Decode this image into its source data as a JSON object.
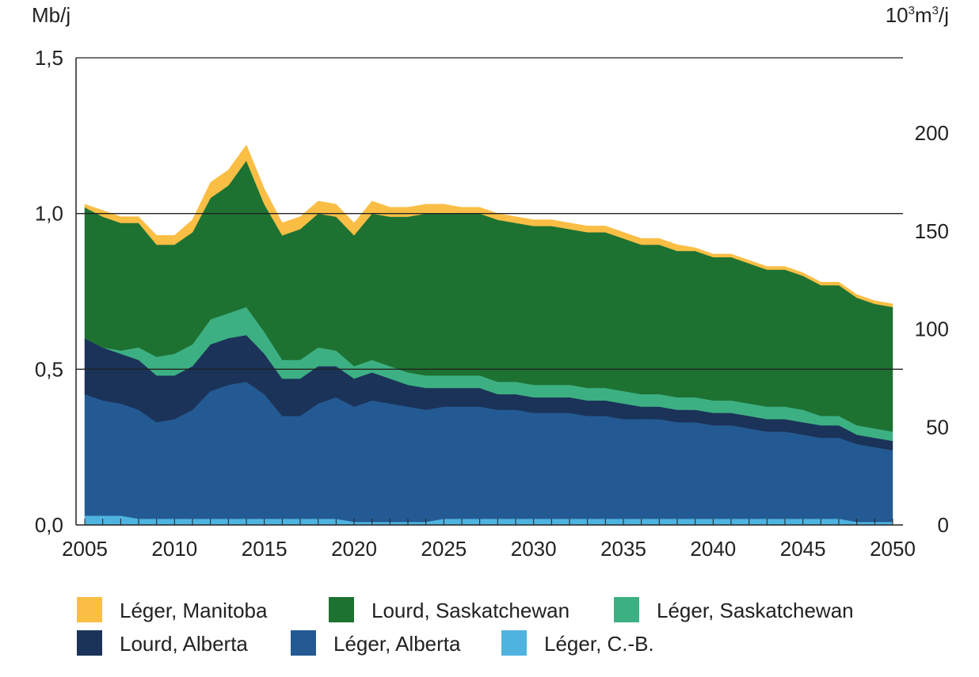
{
  "chart_data": {
    "type": "area",
    "stacked": true,
    "ylabel_left": "Mb/j",
    "ylabel_right_base": "10",
    "ylabel_right_exp1": "3",
    "ylabel_right_mid": "m",
    "ylabel_right_exp2": "3",
    "ylabel_right_end": "/j",
    "ylim": [
      0,
      1.5
    ],
    "yticks": [
      "0,0",
      "0,5",
      "1,0",
      "1,5"
    ],
    "ytick_values": [
      0,
      0.5,
      1.0,
      1.5
    ],
    "right_ticks": [
      "0",
      "50",
      "100",
      "150",
      "200"
    ],
    "right_tick_values": [
      0,
      50,
      100,
      150,
      200
    ],
    "right_axis_factor": 159,
    "xlim": [
      2005,
      2050
    ],
    "xticks": [
      "2005",
      "2010",
      "2015",
      "2020",
      "2025",
      "2030",
      "2035",
      "2040",
      "2045",
      "2050"
    ],
    "grid": "horizontal at 0.5, 1.0, 1.5",
    "legend_position": "bottom",
    "x": [
      2005,
      2006,
      2007,
      2008,
      2009,
      2010,
      2011,
      2012,
      2013,
      2014,
      2015,
      2016,
      2017,
      2018,
      2019,
      2020,
      2021,
      2022,
      2023,
      2024,
      2025,
      2026,
      2027,
      2028,
      2029,
      2030,
      2031,
      2032,
      2033,
      2034,
      2035,
      2036,
      2037,
      2038,
      2039,
      2040,
      2041,
      2042,
      2043,
      2044,
      2045,
      2046,
      2047,
      2048,
      2049,
      2050
    ],
    "series": [
      {
        "name": "Léger, C.-B.",
        "color": "#4FB3E0",
        "values": [
          0.03,
          0.03,
          0.03,
          0.02,
          0.02,
          0.02,
          0.02,
          0.02,
          0.02,
          0.02,
          0.02,
          0.02,
          0.02,
          0.02,
          0.02,
          0.01,
          0.01,
          0.01,
          0.01,
          0.01,
          0.02,
          0.02,
          0.02,
          0.02,
          0.02,
          0.02,
          0.02,
          0.02,
          0.02,
          0.02,
          0.02,
          0.02,
          0.02,
          0.02,
          0.02,
          0.02,
          0.02,
          0.02,
          0.02,
          0.02,
          0.02,
          0.02,
          0.02,
          0.01,
          0.01,
          0.01
        ]
      },
      {
        "name": "Léger, Alberta",
        "color": "#245A93",
        "values": [
          0.39,
          0.37,
          0.36,
          0.35,
          0.31,
          0.32,
          0.35,
          0.41,
          0.43,
          0.44,
          0.4,
          0.33,
          0.33,
          0.37,
          0.39,
          0.37,
          0.39,
          0.38,
          0.37,
          0.36,
          0.36,
          0.36,
          0.36,
          0.35,
          0.35,
          0.34,
          0.34,
          0.34,
          0.33,
          0.33,
          0.32,
          0.32,
          0.32,
          0.31,
          0.31,
          0.3,
          0.3,
          0.29,
          0.28,
          0.28,
          0.27,
          0.26,
          0.26,
          0.25,
          0.24,
          0.23
        ]
      },
      {
        "name": "Lourd, Alberta",
        "color": "#1B3358",
        "values": [
          0.18,
          0.17,
          0.16,
          0.16,
          0.15,
          0.14,
          0.14,
          0.15,
          0.15,
          0.15,
          0.13,
          0.12,
          0.12,
          0.12,
          0.1,
          0.09,
          0.09,
          0.08,
          0.07,
          0.07,
          0.06,
          0.06,
          0.06,
          0.05,
          0.05,
          0.05,
          0.05,
          0.05,
          0.05,
          0.05,
          0.05,
          0.04,
          0.04,
          0.04,
          0.04,
          0.04,
          0.04,
          0.04,
          0.04,
          0.04,
          0.04,
          0.04,
          0.04,
          0.03,
          0.03,
          0.03
        ]
      },
      {
        "name": "Léger, Saskatchewan",
        "color": "#3DB083",
        "values": [
          0.0,
          0.0,
          0.01,
          0.04,
          0.06,
          0.07,
          0.07,
          0.08,
          0.08,
          0.09,
          0.07,
          0.06,
          0.06,
          0.06,
          0.05,
          0.04,
          0.04,
          0.04,
          0.04,
          0.04,
          0.04,
          0.04,
          0.04,
          0.04,
          0.04,
          0.04,
          0.04,
          0.04,
          0.04,
          0.04,
          0.04,
          0.04,
          0.04,
          0.04,
          0.04,
          0.04,
          0.04,
          0.04,
          0.04,
          0.04,
          0.04,
          0.03,
          0.03,
          0.03,
          0.03,
          0.03
        ]
      },
      {
        "name": "Lourd, Saskatchewan",
        "color": "#1D7232",
        "values": [
          0.42,
          0.42,
          0.41,
          0.4,
          0.36,
          0.35,
          0.36,
          0.39,
          0.41,
          0.47,
          0.41,
          0.4,
          0.42,
          0.43,
          0.43,
          0.42,
          0.47,
          0.48,
          0.5,
          0.52,
          0.52,
          0.52,
          0.52,
          0.52,
          0.51,
          0.51,
          0.51,
          0.5,
          0.5,
          0.5,
          0.49,
          0.48,
          0.48,
          0.47,
          0.47,
          0.46,
          0.46,
          0.45,
          0.44,
          0.44,
          0.43,
          0.42,
          0.42,
          0.41,
          0.4,
          0.4
        ]
      },
      {
        "name": "Léger, Manitoba",
        "color": "#FBBE45",
        "values": [
          0.01,
          0.02,
          0.02,
          0.02,
          0.03,
          0.03,
          0.04,
          0.05,
          0.05,
          0.05,
          0.05,
          0.04,
          0.04,
          0.04,
          0.04,
          0.04,
          0.04,
          0.03,
          0.03,
          0.03,
          0.03,
          0.02,
          0.02,
          0.02,
          0.02,
          0.02,
          0.02,
          0.02,
          0.02,
          0.02,
          0.02,
          0.02,
          0.02,
          0.02,
          0.01,
          0.01,
          0.01,
          0.01,
          0.01,
          0.01,
          0.01,
          0.01,
          0.01,
          0.01,
          0.01,
          0.01
        ]
      }
    ],
    "legend_order": [
      5,
      4,
      3,
      2,
      1,
      0
    ]
  }
}
